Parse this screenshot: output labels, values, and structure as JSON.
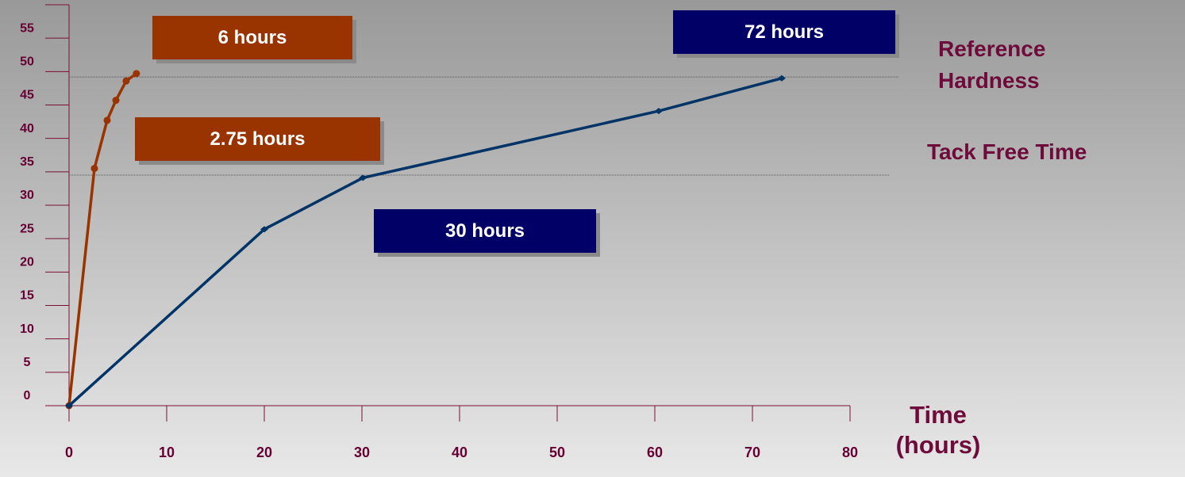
{
  "chart_data": {
    "type": "line",
    "x_label": "Time (hours)",
    "xlim": [
      0,
      80
    ],
    "xticks": [
      0,
      10,
      20,
      30,
      40,
      50,
      60,
      70,
      80
    ],
    "ylim": [
      0,
      60
    ],
    "yticks": [
      0,
      5,
      10,
      15,
      20,
      25,
      30,
      35,
      40,
      45,
      50,
      55,
      60
    ],
    "series": [
      {
        "color": "#993300",
        "marker": "circle",
        "x": [
          0,
          2.6,
          3.9,
          4.8,
          5.85,
          6.9
        ],
        "values": [
          0,
          35.5,
          42.7,
          45.7,
          48.6,
          49.7
        ]
      },
      {
        "color": "#003366",
        "marker": "diamond",
        "x": [
          0,
          20,
          30.1,
          60.4,
          73
        ],
        "values": [
          0,
          26.4,
          34.1,
          44.1,
          49
        ]
      }
    ],
    "reference_lines": [
      {
        "label": "Reference Hardness",
        "value": 49.2
      },
      {
        "label": "Tack Free Time",
        "value": 34.5
      }
    ],
    "annotations": [
      {
        "text": "6 hours",
        "color": "#993300"
      },
      {
        "text": "2.75 hours",
        "color": "#993300"
      },
      {
        "text": "30 hours",
        "color": "#000066"
      },
      {
        "text": "72 hours",
        "color": "#000066"
      }
    ]
  }
}
